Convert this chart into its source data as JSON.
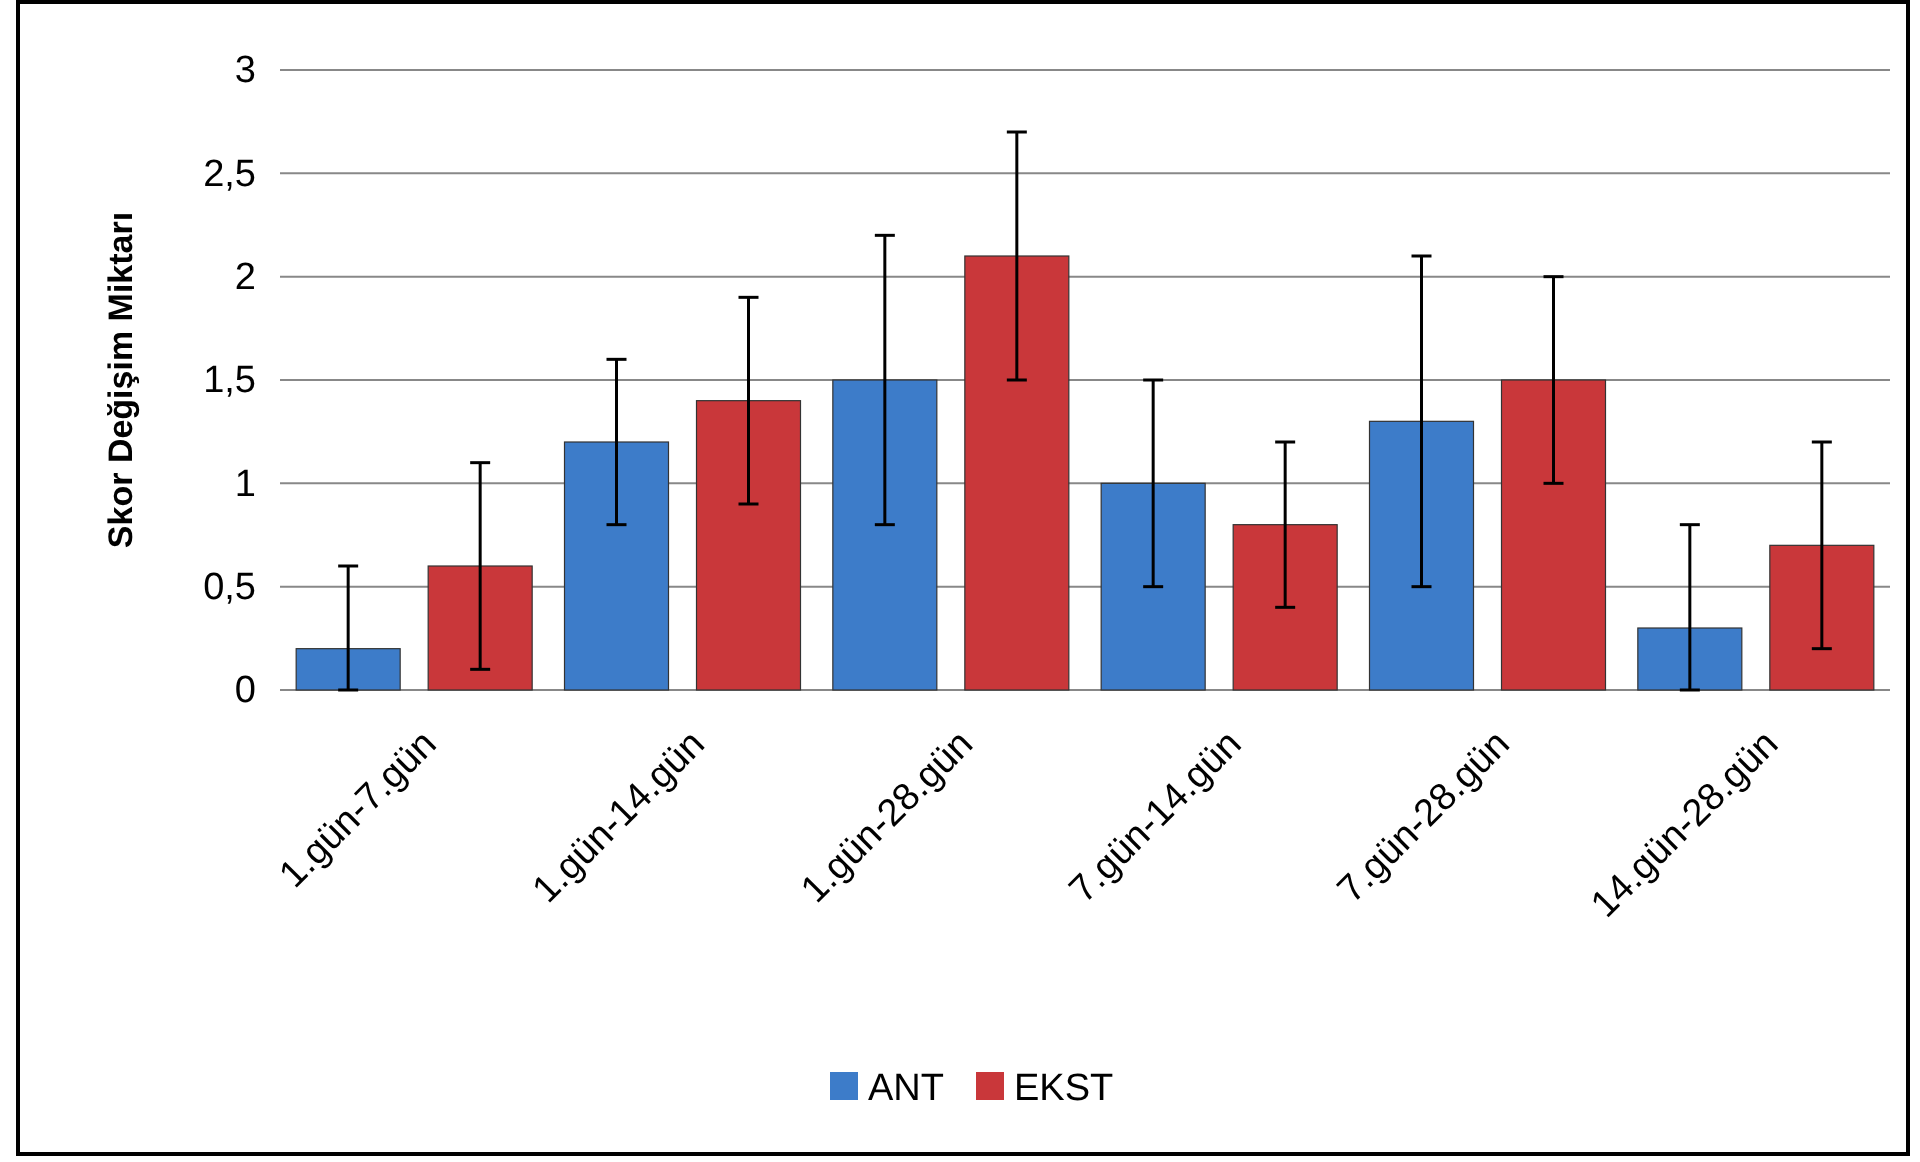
{
  "chart_data": {
    "type": "bar",
    "ylabel": "Skor Değişim Miktarı",
    "categories": [
      "1.gün-7.gün",
      "1.gün-14.gün",
      "1.gün-28.gün",
      "7.gün-14.gün",
      "7.gün-28.gün",
      "14.gün-28.gün"
    ],
    "series": [
      {
        "name": "ANT",
        "color": "#3d7cc9",
        "values": [
          0.2,
          1.2,
          1.5,
          1.0,
          1.3,
          0.3
        ],
        "errors": [
          [
            0,
            0.6
          ],
          [
            0.8,
            1.6
          ],
          [
            0.8,
            2.2
          ],
          [
            0.5,
            1.5
          ],
          [
            0.5,
            2.1
          ],
          [
            0,
            0.8
          ]
        ]
      },
      {
        "name": "EKST",
        "color": "#c9373a",
        "values": [
          0.6,
          1.4,
          2.1,
          0.8,
          1.5,
          0.7
        ],
        "errors": [
          [
            0.1,
            1.1
          ],
          [
            0.9,
            1.9
          ],
          [
            1.5,
            2.7
          ],
          [
            0.4,
            1.2
          ],
          [
            1.0,
            2.0
          ],
          [
            0.2,
            1.2
          ]
        ]
      }
    ],
    "ylim": [
      0,
      3
    ],
    "yticks": [
      0,
      {
        "value": 0.5,
        "label": "0,5"
      },
      1,
      {
        "value": 1.5,
        "label": "1,5"
      },
      2,
      {
        "value": 2.5,
        "label": "2,5"
      },
      3
    ],
    "grid": "y",
    "legend": "bottom"
  }
}
